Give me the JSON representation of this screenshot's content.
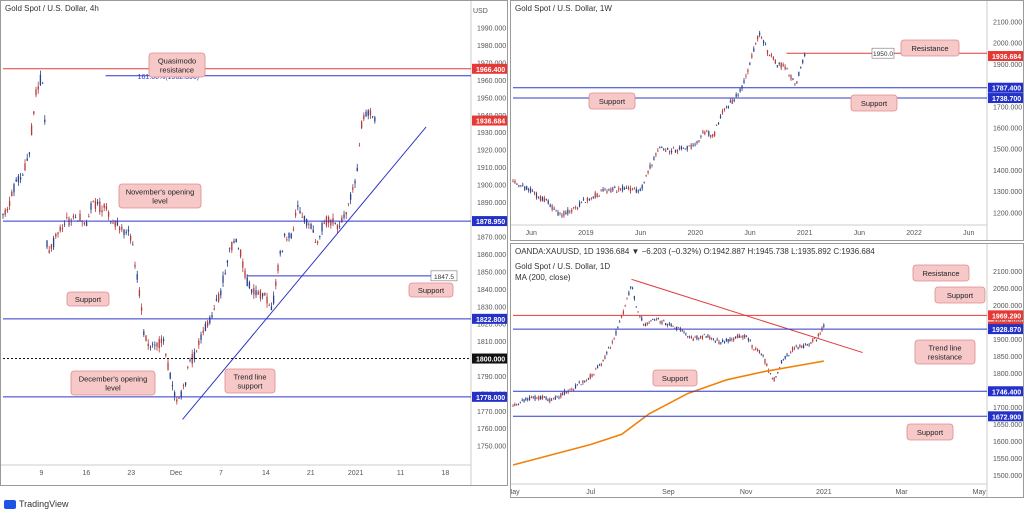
{
  "colors": {
    "candle_up": "#27408b",
    "candle_down": "#b23a3a",
    "level_red": "#e23b3b",
    "level_blue": "#2f38c9",
    "ma": "#f0820a",
    "callout_bg": "#f6c8c8",
    "callout_border": "#e08b8b",
    "price_tag": "#e53935",
    "level_tag": "#2431c8",
    "black_tag": "#111111"
  },
  "footer": {
    "brand": "TradingView"
  },
  "panels": {
    "p4h": {
      "title": "Gold Spot / U.S. Dollar, 4h",
      "currency": "USD",
      "fib_label": "161.80%(1962.396)",
      "callouts": [
        {
          "label": "Quasimodo\nresistance",
          "name": "callout-quasimodo-resistance"
        },
        {
          "label": "November's opening\nlevel",
          "name": "callout-november-opening"
        },
        {
          "label": "Support",
          "name": "callout-support-a"
        },
        {
          "label": "December's opening\nlevel",
          "name": "callout-december-opening"
        },
        {
          "label": "Trend line\nsupport",
          "name": "callout-trendline-support"
        },
        {
          "label": "Support",
          "name": "callout-support-b"
        }
      ],
      "mini_tag": "1847.5"
    },
    "pW": {
      "title": "Gold Spot / U.S. Dollar, 1W",
      "mini_tag": "1950.0",
      "callouts": [
        {
          "label": "Resistance",
          "name": "callout-resistance"
        },
        {
          "label": "Support",
          "name": "callout-support-left"
        },
        {
          "label": "Support",
          "name": "callout-support-right"
        }
      ]
    },
    "pD": {
      "header": "OANDA:XAUUSD, 1D  1936.684 ▼ −6.203 (−0.32%)  O:1942.887  H:1945.738  L:1935.892  C:1936.684",
      "title": "Gold Spot / U.S. Dollar, 1D",
      "subtitle": "MA (200, close)",
      "callouts": [
        {
          "label": "Resistance",
          "name": "callout-resistance"
        },
        {
          "label": "Support",
          "name": "callout-support-top"
        },
        {
          "label": "Trend line\nresistance",
          "name": "callout-trendline-resistance"
        },
        {
          "label": "Support",
          "name": "callout-support-mid"
        },
        {
          "label": "Support",
          "name": "callout-support-bottom"
        }
      ]
    }
  },
  "chart_data": [
    {
      "id": "p4h",
      "type": "candlestick",
      "title": "Gold Spot / U.S. Dollar, 4h",
      "ylim": [
        1740,
        1995
      ],
      "y_ticks": [
        1750,
        1760,
        1770,
        1780,
        1790,
        1800,
        1810,
        1820,
        1830,
        1840,
        1850,
        1860,
        1870,
        1880,
        1890,
        1900,
        1910,
        1920,
        1930,
        1940,
        1950,
        1960,
        1970,
        1980,
        1990
      ],
      "x_ticks": [
        "9",
        "16",
        "23",
        "Dec",
        "7",
        "14",
        "21",
        "2021",
        "11",
        "18"
      ],
      "x_tick_pos": [
        0,
        7,
        14,
        21,
        28,
        35,
        42,
        49,
        56,
        63
      ],
      "x_range": [
        -6,
        67
      ],
      "levels": [
        {
          "value": 1966.4,
          "label": "1966.400",
          "kind": "red"
        },
        {
          "value": 1936.684,
          "label": "1936.684",
          "kind": "price"
        },
        {
          "value": 1878.95,
          "label": "1878.950",
          "kind": "blue"
        },
        {
          "value": 1822.8,
          "label": "1822.800",
          "kind": "blue"
        },
        {
          "value": 1800.0,
          "label": "1800.000",
          "kind": "black"
        },
        {
          "value": 1778.0,
          "label": "1778.000",
          "kind": "blue"
        }
      ],
      "series": [
        {
          "x": -6,
          "y": 1880
        },
        {
          "x": -4,
          "y": 1900
        },
        {
          "x": -2,
          "y": 1915
        },
        {
          "x": -1,
          "y": 1950
        },
        {
          "x": 0,
          "y": 1962
        },
        {
          "x": 0.5,
          "y": 1945
        },
        {
          "x": 0.7,
          "y": 1870
        },
        {
          "x": 1,
          "y": 1860
        },
        {
          "x": 3,
          "y": 1875
        },
        {
          "x": 5,
          "y": 1882
        },
        {
          "x": 7,
          "y": 1878
        },
        {
          "x": 8,
          "y": 1890
        },
        {
          "x": 10,
          "y": 1885
        },
        {
          "x": 12,
          "y": 1875
        },
        {
          "x": 14,
          "y": 1870
        },
        {
          "x": 15,
          "y": 1845
        },
        {
          "x": 16,
          "y": 1815
        },
        {
          "x": 17,
          "y": 1805
        },
        {
          "x": 18,
          "y": 1808
        },
        {
          "x": 19,
          "y": 1810
        },
        {
          "x": 20,
          "y": 1790
        },
        {
          "x": 21,
          "y": 1775
        },
        {
          "x": 22,
          "y": 1780
        },
        {
          "x": 23,
          "y": 1795
        },
        {
          "x": 25,
          "y": 1812
        },
        {
          "x": 27,
          "y": 1830
        },
        {
          "x": 28,
          "y": 1838
        },
        {
          "x": 29,
          "y": 1858
        },
        {
          "x": 30,
          "y": 1868
        },
        {
          "x": 31,
          "y": 1862
        },
        {
          "x": 32,
          "y": 1845
        },
        {
          "x": 33,
          "y": 1838
        },
        {
          "x": 35,
          "y": 1835
        },
        {
          "x": 36,
          "y": 1828
        },
        {
          "x": 37,
          "y": 1855
        },
        {
          "x": 38,
          "y": 1870
        },
        {
          "x": 39,
          "y": 1872
        },
        {
          "x": 40,
          "y": 1888
        },
        {
          "x": 41,
          "y": 1880
        },
        {
          "x": 42,
          "y": 1875
        },
        {
          "x": 43,
          "y": 1865
        },
        {
          "x": 44,
          "y": 1878
        },
        {
          "x": 45,
          "y": 1880
        },
        {
          "x": 46,
          "y": 1875
        },
        {
          "x": 47,
          "y": 1880
        },
        {
          "x": 48,
          "y": 1890
        },
        {
          "x": 49,
          "y": 1900
        },
        {
          "x": 50,
          "y": 1935
        },
        {
          "x": 51,
          "y": 1943
        },
        {
          "x": 52,
          "y": 1936.684
        }
      ],
      "trend_line": [
        {
          "x": 22,
          "y": 1765
        },
        {
          "x": 60,
          "y": 1933
        }
      ]
    },
    {
      "id": "pW",
      "type": "candlestick",
      "title": "Gold Spot / U.S. Dollar, 1W",
      "ylim": [
        1150,
        2130
      ],
      "y_ticks": [
        1200,
        1300,
        1400,
        1500,
        1600,
        1700,
        1800,
        1900,
        2000,
        2100
      ],
      "x_ticks": [
        "Jun",
        "2019",
        "Jun",
        "2020",
        "Jun",
        "2021",
        "Jun",
        "2022",
        "Jun"
      ],
      "x_tick_pos": [
        0,
        6,
        12,
        18,
        24,
        30,
        36,
        42,
        48
      ],
      "x_range": [
        -2,
        50
      ],
      "levels": [
        {
          "value": 1950.0,
          "label": "1950.0",
          "kind": "redline"
        },
        {
          "value": 1936.684,
          "label": "1936.684",
          "kind": "price"
        },
        {
          "value": 1787.4,
          "label": "1787.400",
          "kind": "blue"
        },
        {
          "value": 1738.7,
          "label": "1738.700",
          "kind": "blue"
        }
      ],
      "series": [
        {
          "x": -2,
          "y": 1340
        },
        {
          "x": 0,
          "y": 1300
        },
        {
          "x": 2,
          "y": 1240
        },
        {
          "x": 3,
          "y": 1190
        },
        {
          "x": 4,
          "y": 1200
        },
        {
          "x": 6,
          "y": 1260
        },
        {
          "x": 8,
          "y": 1300
        },
        {
          "x": 10,
          "y": 1310
        },
        {
          "x": 12,
          "y": 1300
        },
        {
          "x": 13,
          "y": 1410
        },
        {
          "x": 14,
          "y": 1500
        },
        {
          "x": 16,
          "y": 1490
        },
        {
          "x": 18,
          "y": 1520
        },
        {
          "x": 19,
          "y": 1580
        },
        {
          "x": 20,
          "y": 1560
        },
        {
          "x": 21,
          "y": 1680
        },
        {
          "x": 22,
          "y": 1720
        },
        {
          "x": 23,
          "y": 1780
        },
        {
          "x": 24,
          "y": 1900
        },
        {
          "x": 25,
          "y": 2050
        },
        {
          "x": 26,
          "y": 1950
        },
        {
          "x": 27,
          "y": 1900
        },
        {
          "x": 28,
          "y": 1880
        },
        {
          "x": 29,
          "y": 1800
        },
        {
          "x": 29.5,
          "y": 1870
        },
        {
          "x": 30,
          "y": 1936.684
        }
      ]
    },
    {
      "id": "pD",
      "type": "candlestick",
      "title": "Gold Spot / U.S. Dollar, 1D",
      "ylim": [
        1480,
        2120
      ],
      "y_ticks": [
        1500,
        1550,
        1600,
        1650,
        1700,
        1750,
        1800,
        1850,
        1900,
        1950,
        2000,
        2050,
        2100
      ],
      "x_ticks": [
        "May",
        "Jul",
        "Sep",
        "Nov",
        "2021",
        "Mar",
        "May"
      ],
      "x_tick_pos": [
        0,
        2,
        4,
        6,
        8,
        10,
        12
      ],
      "x_range": [
        0,
        12.2
      ],
      "levels": [
        {
          "value": 1969.29,
          "label": "1969.290",
          "kind": "red"
        },
        {
          "value": 1936.684,
          "label": "1936.684",
          "kind": "price"
        },
        {
          "value": 1928.87,
          "label": "1928.870",
          "kind": "blue"
        },
        {
          "value": 1746.4,
          "label": "1746.400",
          "kind": "blue"
        },
        {
          "value": 1672.9,
          "label": "1672.900",
          "kind": "blue"
        }
      ],
      "series": [
        {
          "x": 0.0,
          "y": 1700
        },
        {
          "x": 0.3,
          "y": 1720
        },
        {
          "x": 0.6,
          "y": 1730
        },
        {
          "x": 1.0,
          "y": 1720
        },
        {
          "x": 1.3,
          "y": 1740
        },
        {
          "x": 1.6,
          "y": 1760
        },
        {
          "x": 2.0,
          "y": 1790
        },
        {
          "x": 2.3,
          "y": 1830
        },
        {
          "x": 2.6,
          "y": 1900
        },
        {
          "x": 2.85,
          "y": 1980
        },
        {
          "x": 3.05,
          "y": 2060
        },
        {
          "x": 3.2,
          "y": 1980
        },
        {
          "x": 3.4,
          "y": 1940
        },
        {
          "x": 3.7,
          "y": 1960
        },
        {
          "x": 4.0,
          "y": 1940
        },
        {
          "x": 4.3,
          "y": 1930
        },
        {
          "x": 4.6,
          "y": 1900
        },
        {
          "x": 5.0,
          "y": 1910
        },
        {
          "x": 5.3,
          "y": 1890
        },
        {
          "x": 5.6,
          "y": 1900
        },
        {
          "x": 6.0,
          "y": 1910
        },
        {
          "x": 6.2,
          "y": 1870
        },
        {
          "x": 6.4,
          "y": 1860
        },
        {
          "x": 6.6,
          "y": 1800
        },
        {
          "x": 6.75,
          "y": 1780
        },
        {
          "x": 6.9,
          "y": 1830
        },
        {
          "x": 7.2,
          "y": 1870
        },
        {
          "x": 7.5,
          "y": 1880
        },
        {
          "x": 7.8,
          "y": 1900
        },
        {
          "x": 8.0,
          "y": 1936.684
        }
      ],
      "ma": [
        {
          "x": 0.0,
          "y": 1530
        },
        {
          "x": 1.0,
          "y": 1560
        },
        {
          "x": 2.0,
          "y": 1590
        },
        {
          "x": 2.8,
          "y": 1620
        },
        {
          "x": 3.5,
          "y": 1680
        },
        {
          "x": 4.5,
          "y": 1740
        },
        {
          "x": 5.5,
          "y": 1780
        },
        {
          "x": 6.5,
          "y": 1805
        },
        {
          "x": 7.5,
          "y": 1825
        },
        {
          "x": 8.0,
          "y": 1835
        }
      ],
      "trend_line": [
        {
          "x": 3.05,
          "y": 2075
        },
        {
          "x": 9.0,
          "y": 1860
        }
      ]
    }
  ]
}
